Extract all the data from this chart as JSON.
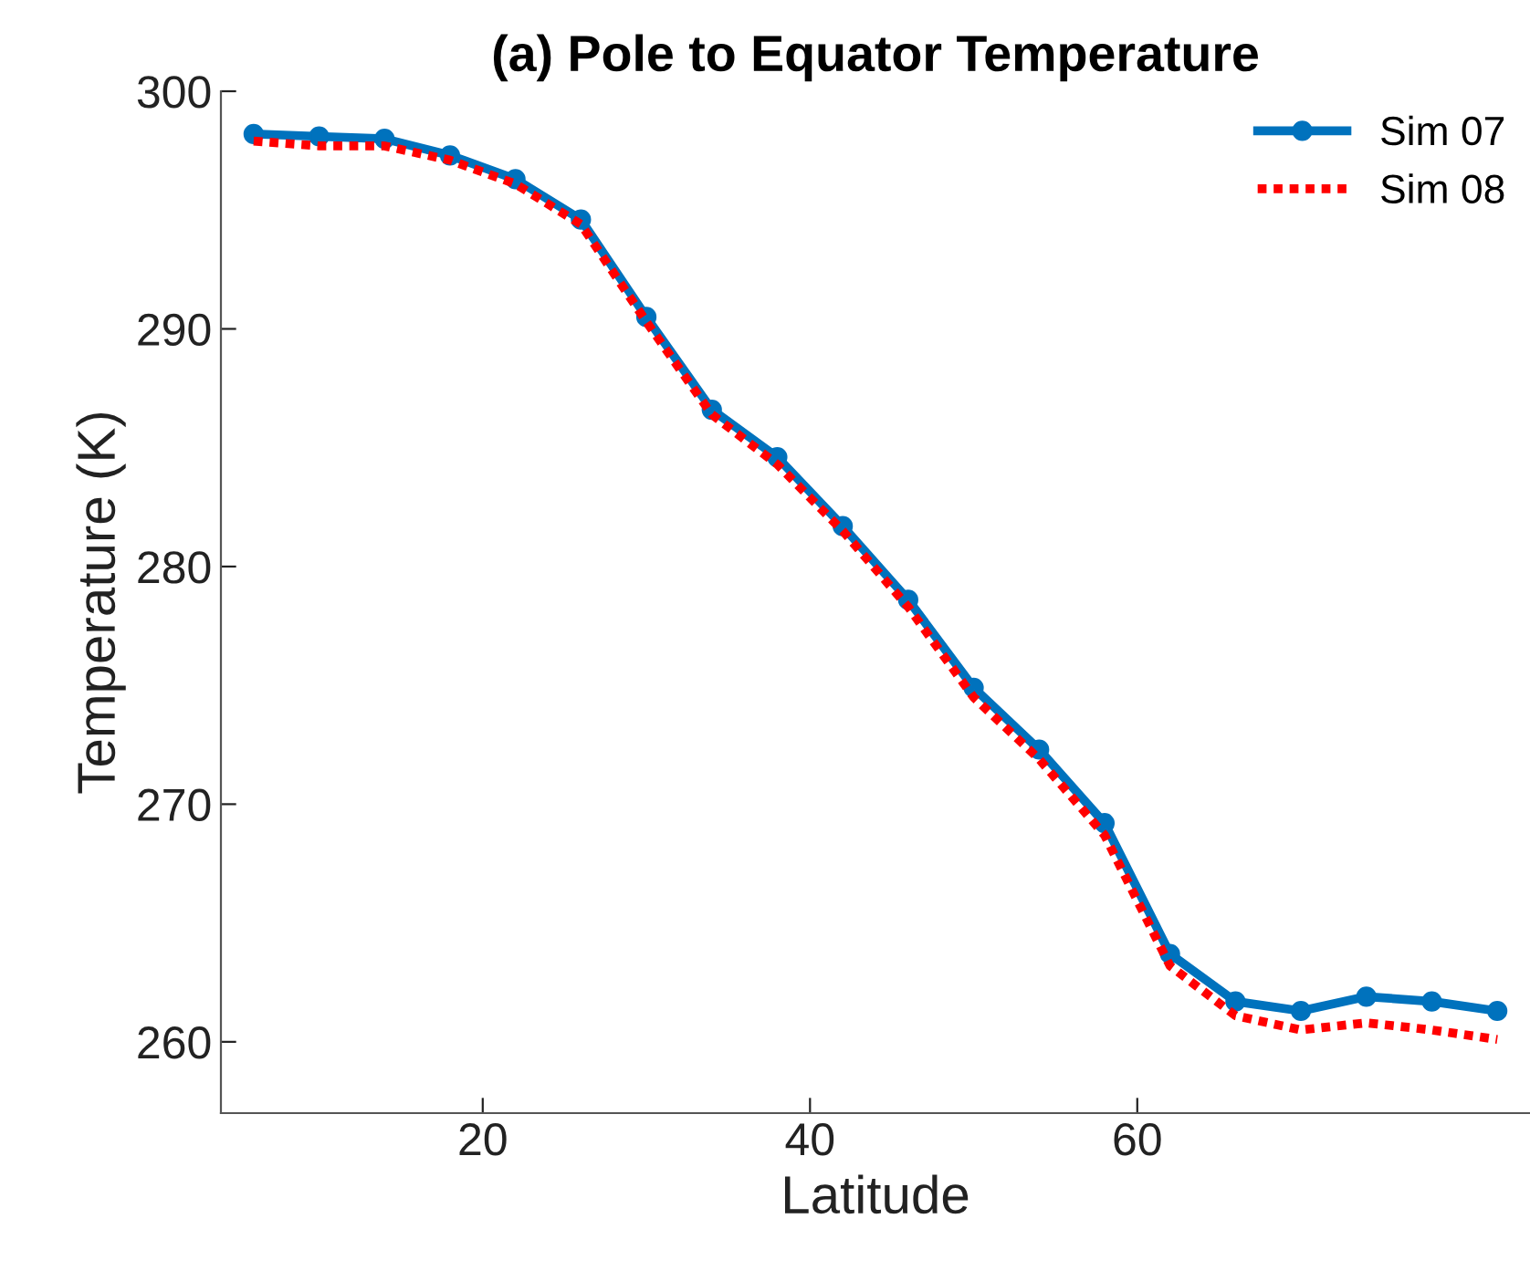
{
  "chart_data": {
    "type": "line",
    "title": "(a) Pole to Equator Temperature",
    "xlabel": "Latitude",
    "ylabel": "Temperature (K)",
    "x": [
      6,
      10,
      14,
      18,
      22,
      26,
      30,
      34,
      38,
      42,
      46,
      50,
      54,
      58,
      62,
      66,
      70,
      74,
      78,
      82
    ],
    "series": [
      {
        "name": "Sim 07",
        "color": "#0072bd",
        "marker": "circle",
        "line_style": "solid",
        "values": [
          298.2,
          298.1,
          298.0,
          297.3,
          296.3,
          294.6,
          290.5,
          286.6,
          284.6,
          281.7,
          278.6,
          274.9,
          272.3,
          269.2,
          263.7,
          261.7,
          261.3,
          261.9,
          261.7,
          261.3
        ]
      },
      {
        "name": "Sim 08",
        "color": "#ff0000",
        "marker": "none",
        "line_style": "dotted",
        "values": [
          297.9,
          297.7,
          297.7,
          297.1,
          296.1,
          294.4,
          290.3,
          286.4,
          284.3,
          281.5,
          278.3,
          274.5,
          271.9,
          268.7,
          263.2,
          261.1,
          260.5,
          260.8,
          260.5,
          260.1
        ]
      }
    ],
    "xlim": [
      4,
      84
    ],
    "xticks": [
      20,
      40,
      60
    ],
    "ylim": [
      257,
      300
    ],
    "yticks": [
      260,
      270,
      280,
      290,
      300
    ],
    "grid": false,
    "legend": "top right"
  }
}
